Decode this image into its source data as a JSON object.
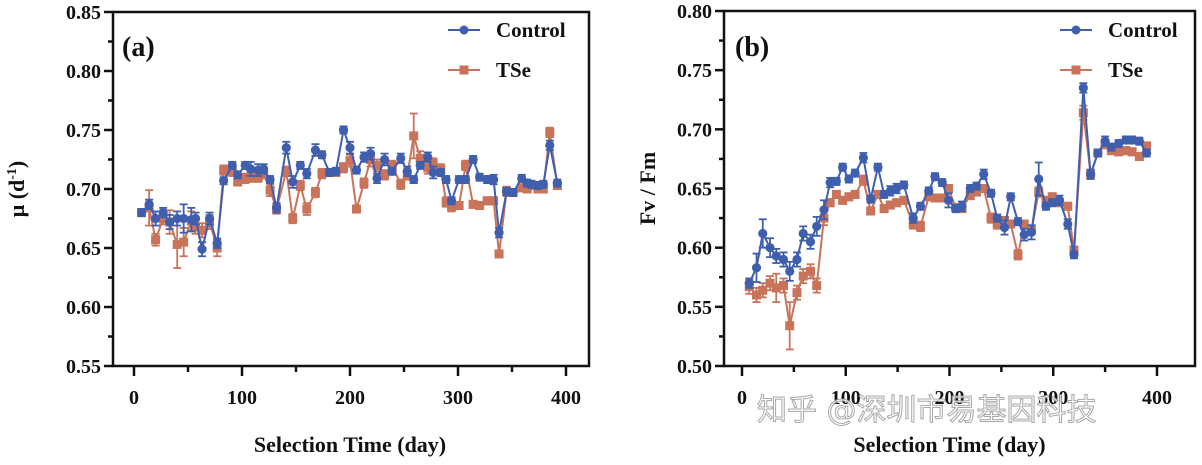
{
  "watermark": "知乎 @深圳市易基因科技",
  "series_colors": {
    "Control": "#3f5fae",
    "TSe": "#c9735a"
  },
  "chart_data": [
    {
      "type": "line",
      "panel_label": "(a)",
      "title": "",
      "xlabel": "Selection Time (day)",
      "ylabel_main": "μ (d",
      "ylabel_sup": "-1",
      "ylabel_close": ")",
      "xlim": [
        0,
        400
      ],
      "ylim": [
        0.55,
        0.85
      ],
      "xticks": [
        0,
        100,
        200,
        300,
        400
      ],
      "xtick_labels": [
        "0",
        "100",
        "200",
        "300",
        "400"
      ],
      "yticks": [
        0.55,
        0.6,
        0.65,
        0.7,
        0.75,
        0.8,
        0.85
      ],
      "ytick_labels": [
        "0.55",
        "0.60",
        "0.65",
        "0.70",
        "0.75",
        "0.80",
        "0.85"
      ],
      "grid": false,
      "legend_position": "top-right",
      "legend": [
        "Control",
        "TSe"
      ],
      "x": [
        7,
        14,
        20,
        27,
        33,
        40,
        46,
        53,
        57,
        63,
        70,
        77,
        83,
        91,
        96,
        103,
        108,
        115,
        120,
        126,
        132,
        141,
        147,
        154,
        160,
        168,
        174,
        181,
        187,
        194,
        200,
        206,
        213,
        219,
        225,
        232,
        239,
        247,
        253,
        259,
        265,
        272,
        277,
        284,
        289,
        294,
        301,
        307,
        314,
        320,
        327,
        333,
        338,
        345,
        351,
        359,
        364,
        368,
        374,
        379,
        385,
        392
      ],
      "series": [
        {
          "name": "Control",
          "marker": "circle",
          "values": [
            0.68,
            0.687,
            0.675,
            0.68,
            0.672,
            0.675,
            0.675,
            0.674,
            0.675,
            0.649,
            0.675,
            0.654,
            0.707,
            0.72,
            0.712,
            0.72,
            0.717,
            0.716,
            0.717,
            0.708,
            0.684,
            0.735,
            0.706,
            0.72,
            0.713,
            0.733,
            0.729,
            0.714,
            0.715,
            0.75,
            0.735,
            0.716,
            0.727,
            0.73,
            0.709,
            0.725,
            0.715,
            0.726,
            0.715,
            0.708,
            0.72,
            0.727,
            0.714,
            0.714,
            0.708,
            0.69,
            0.708,
            0.708,
            0.725,
            0.71,
            0.708,
            0.708,
            0.663,
            0.698,
            0.697,
            0.709,
            0.705,
            0.704,
            0.703,
            0.704,
            0.737,
            0.705
          ],
          "errors": [
            0.003,
            0.004,
            0.006,
            0.004,
            0.006,
            0.006,
            0.012,
            0.01,
            0.005,
            0.006,
            0.005,
            0.004,
            0.003,
            0.003,
            0.003,
            0.003,
            0.006,
            0.005,
            0.004,
            0.003,
            0.004,
            0.005,
            0.005,
            0.003,
            0.004,
            0.005,
            0.003,
            0.003,
            0.003,
            0.003,
            0.005,
            0.003,
            0.004,
            0.005,
            0.004,
            0.005,
            0.003,
            0.004,
            0.004,
            0.003,
            0.003,
            0.004,
            0.005,
            0.003,
            0.003,
            0.003,
            0.003,
            0.003,
            0.003,
            0.003,
            0.003,
            0.004,
            0.004,
            0.003,
            0.003,
            0.003,
            0.003,
            0.003,
            0.003,
            0.003,
            0.004,
            0.003
          ]
        },
        {
          "name": "TSe",
          "marker": "square",
          "values": [
            0.68,
            0.684,
            0.657,
            0.675,
            0.672,
            0.653,
            0.655,
            0.673,
            0.668,
            0.665,
            0.672,
            0.65,
            0.716,
            0.715,
            0.706,
            0.709,
            0.71,
            0.71,
            0.713,
            0.699,
            0.683,
            0.715,
            0.675,
            0.703,
            0.683,
            0.697,
            0.713,
            0.714,
            0.714,
            0.718,
            0.724,
            0.683,
            0.705,
            0.725,
            0.72,
            0.712,
            0.72,
            0.704,
            0.711,
            0.745,
            0.726,
            0.718,
            0.722,
            0.717,
            0.689,
            0.685,
            0.686,
            0.72,
            0.687,
            0.686,
            0.69,
            0.69,
            0.645,
            0.698,
            0.697,
            0.701,
            0.7,
            0.703,
            0.7,
            0.7,
            0.748,
            0.703
          ],
          "errors": [
            0.003,
            0.015,
            0.005,
            0.005,
            0.01,
            0.02,
            0.012,
            0.008,
            0.006,
            0.006,
            0.006,
            0.007,
            0.004,
            0.004,
            0.003,
            0.004,
            0.004,
            0.004,
            0.004,
            0.005,
            0.004,
            0.004,
            0.004,
            0.004,
            0.005,
            0.004,
            0.004,
            0.003,
            0.003,
            0.004,
            0.005,
            0.003,
            0.004,
            0.006,
            0.005,
            0.004,
            0.004,
            0.004,
            0.003,
            0.019,
            0.006,
            0.005,
            0.004,
            0.004,
            0.004,
            0.004,
            0.003,
            0.004,
            0.003,
            0.003,
            0.003,
            0.003,
            0.003,
            0.004,
            0.003,
            0.003,
            0.003,
            0.003,
            0.003,
            0.003,
            0.004,
            0.003
          ]
        }
      ]
    },
    {
      "type": "line",
      "panel_label": "(b)",
      "title": "",
      "xlabel": "Selection Time (day)",
      "ylabel_main": "Fv / Fm",
      "ylabel_sup": "",
      "ylabel_close": "",
      "xlim": [
        0,
        400
      ],
      "ylim": [
        0.5,
        0.8
      ],
      "xticks": [
        0,
        100,
        200,
        300,
        400
      ],
      "xtick_labels": [
        "0",
        "100",
        "200",
        "300",
        "400"
      ],
      "yticks": [
        0.5,
        0.55,
        0.6,
        0.65,
        0.7,
        0.75,
        0.8
      ],
      "ytick_labels": [
        "0.50",
        "0.55",
        "0.60",
        "0.65",
        "0.70",
        "0.75",
        "0.80"
      ],
      "grid": false,
      "legend_position": "top-right",
      "legend": [
        "Control",
        "TSe"
      ],
      "x": [
        7,
        14,
        20,
        27,
        33,
        40,
        46,
        53,
        59,
        66,
        72,
        79,
        85,
        91,
        97,
        103,
        109,
        117,
        124,
        131,
        137,
        143,
        149,
        156,
        165,
        172,
        180,
        186,
        193,
        199,
        206,
        212,
        220,
        226,
        233,
        240,
        246,
        253,
        259,
        266,
        272,
        279,
        286,
        293,
        299,
        306,
        314,
        320,
        329,
        336,
        343,
        350,
        356,
        363,
        370,
        376,
        383,
        390
      ],
      "series": [
        {
          "name": "Control",
          "marker": "circle",
          "values": [
            0.57,
            0.583,
            0.612,
            0.6,
            0.593,
            0.59,
            0.58,
            0.59,
            0.612,
            0.605,
            0.618,
            0.632,
            0.655,
            0.656,
            0.668,
            0.658,
            0.663,
            0.676,
            0.641,
            0.668,
            0.645,
            0.648,
            0.65,
            0.653,
            0.625,
            0.635,
            0.648,
            0.66,
            0.655,
            0.64,
            0.633,
            0.635,
            0.65,
            0.652,
            0.662,
            0.646,
            0.625,
            0.617,
            0.643,
            0.622,
            0.611,
            0.613,
            0.658,
            0.635,
            0.638,
            0.64,
            0.62,
            0.594,
            0.735,
            0.662,
            0.68,
            0.69,
            0.685,
            0.688,
            0.691,
            0.691,
            0.69,
            0.68
          ],
          "errors": [
            0.004,
            0.012,
            0.012,
            0.008,
            0.006,
            0.006,
            0.008,
            0.006,
            0.006,
            0.006,
            0.008,
            0.008,
            0.004,
            0.003,
            0.003,
            0.003,
            0.003,
            0.004,
            0.003,
            0.003,
            0.003,
            0.004,
            0.004,
            0.003,
            0.004,
            0.003,
            0.003,
            0.003,
            0.003,
            0.006,
            0.003,
            0.004,
            0.003,
            0.003,
            0.004,
            0.003,
            0.003,
            0.006,
            0.003,
            0.003,
            0.005,
            0.006,
            0.014,
            0.003,
            0.003,
            0.004,
            0.004,
            0.003,
            0.004,
            0.004,
            0.003,
            0.004,
            0.003,
            0.003,
            0.003,
            0.003,
            0.003,
            0.003
          ]
        },
        {
          "name": "TSe",
          "marker": "square",
          "values": [
            0.567,
            0.56,
            0.564,
            0.57,
            0.566,
            0.568,
            0.534,
            0.562,
            0.576,
            0.58,
            0.568,
            0.625,
            0.638,
            0.645,
            0.64,
            0.643,
            0.645,
            0.657,
            0.631,
            0.645,
            0.633,
            0.636,
            0.638,
            0.64,
            0.62,
            0.618,
            0.643,
            0.642,
            0.642,
            0.65,
            0.634,
            0.633,
            0.644,
            0.647,
            0.65,
            0.625,
            0.62,
            0.623,
            0.62,
            0.594,
            0.62,
            0.615,
            0.647,
            0.64,
            0.643,
            0.638,
            0.635,
            0.598,
            0.714,
            0.662,
            0.68,
            0.687,
            0.682,
            0.681,
            0.682,
            0.681,
            0.677,
            0.686
          ],
          "errors": [
            0.006,
            0.006,
            0.006,
            0.006,
            0.012,
            0.006,
            0.02,
            0.006,
            0.006,
            0.006,
            0.006,
            0.006,
            0.003,
            0.003,
            0.003,
            0.003,
            0.003,
            0.004,
            0.003,
            0.003,
            0.003,
            0.003,
            0.003,
            0.003,
            0.004,
            0.004,
            0.003,
            0.003,
            0.003,
            0.003,
            0.003,
            0.003,
            0.003,
            0.003,
            0.003,
            0.004,
            0.004,
            0.003,
            0.003,
            0.004,
            0.003,
            0.003,
            0.004,
            0.003,
            0.003,
            0.003,
            0.003,
            0.003,
            0.006,
            0.003,
            0.003,
            0.003,
            0.003,
            0.003,
            0.003,
            0.003,
            0.003,
            0.003
          ]
        }
      ]
    }
  ]
}
